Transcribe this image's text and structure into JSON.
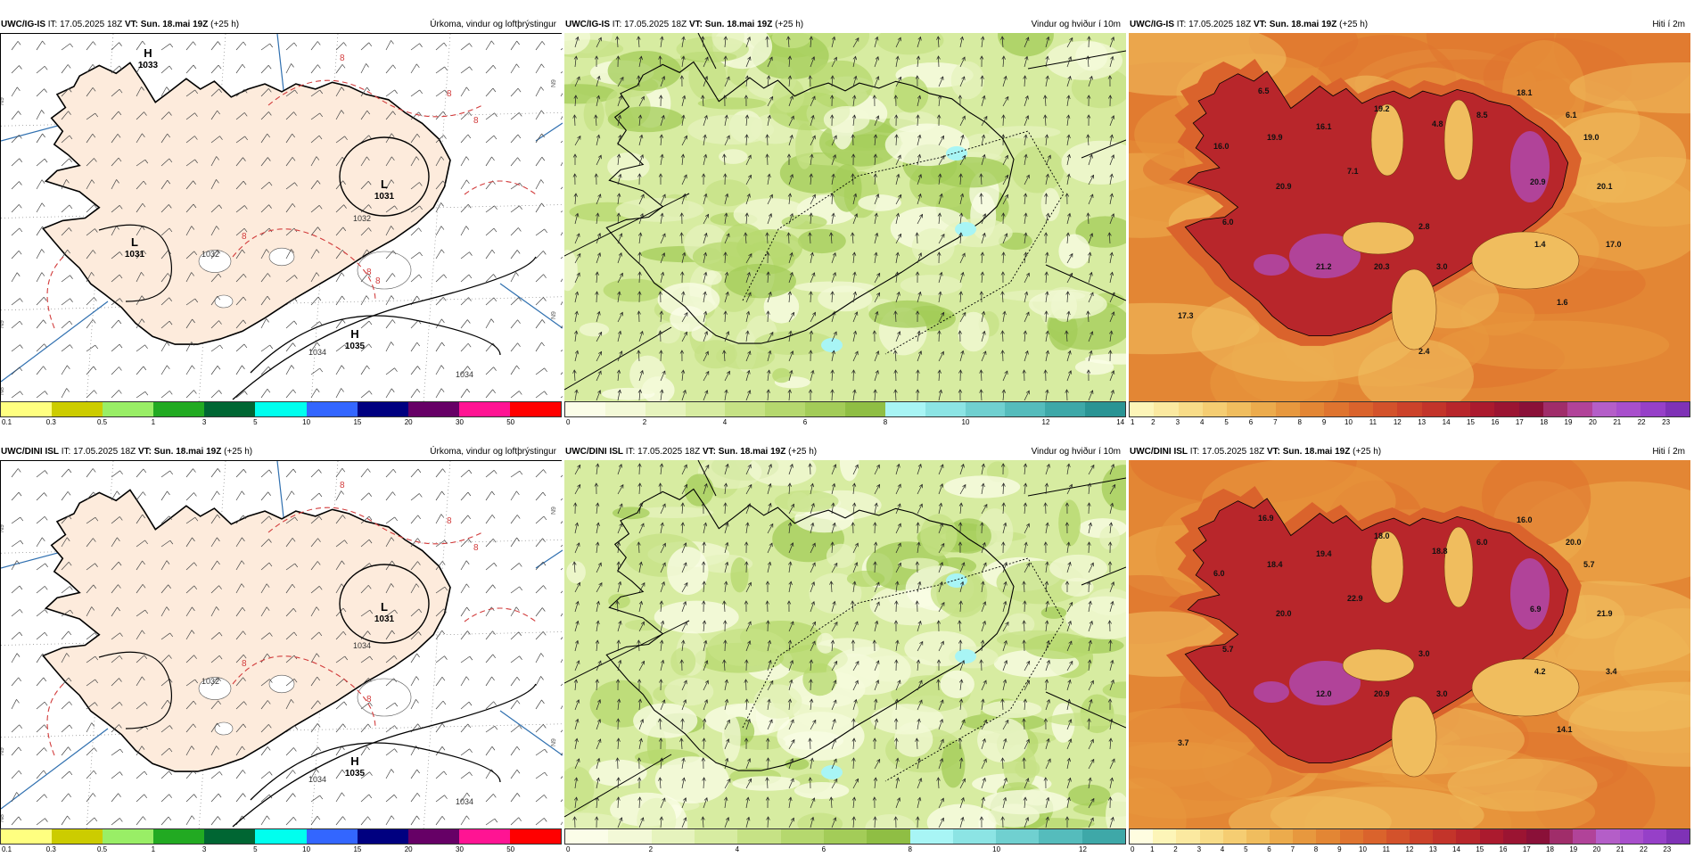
{
  "panels": [
    {
      "id": "p1",
      "model": "UWC/IG-IS",
      "it_label": "IT:",
      "it_value": "17.05.2025 18Z",
      "vt_label": "VT:",
      "vt_value": "Sun. 18.mai 19Z",
      "lead": "(+25 h)",
      "field": "Úrkoma, vindur og loftþrýstingur",
      "map_type": "precip",
      "pressure_labels": [
        {
          "type": "H",
          "value": "1033"
        },
        {
          "type": "L",
          "value": "1031"
        },
        {
          "type": "L",
          "value": "1031"
        },
        {
          "type": "H",
          "value": "1035"
        }
      ],
      "isobar_labels": [
        "1032",
        "1032",
        "1034",
        "1034"
      ],
      "red_labels": [
        "8",
        "8",
        "8",
        "8",
        "8",
        "8"
      ],
      "edge_labels": [
        "N9",
        "N9",
        "N9",
        "N9",
        "N8"
      ],
      "colorbar": {
        "colors": [
          "#ffff80",
          "#cccc00",
          "#99ee66",
          "#22aa22",
          "#006633",
          "#00ffee",
          "#3366ff",
          "#000080",
          "#660066",
          "#ff1493",
          "#ff0000"
        ],
        "ticks": [
          "0.1",
          "0.3",
          "0.5",
          "1",
          "3",
          "5",
          "10",
          "15",
          "20",
          "30",
          "50"
        ]
      }
    },
    {
      "id": "p2",
      "model": "UWC/IG-IS",
      "it_label": "IT:",
      "it_value": "17.05.2025 18Z",
      "vt_label": "VT:",
      "vt_value": "Sun. 18.mai 19Z",
      "lead": "(+25 h)",
      "field": "Vindur og hviður í 10m",
      "map_type": "wind",
      "colorbar": {
        "colors": [
          "#fbfde8",
          "#f3f9d7",
          "#e6f3bd",
          "#d7eca1",
          "#c6e285",
          "#b5d86e",
          "#a3cc58",
          "#8fbe44",
          "#a8f5f5",
          "#8ce4e4",
          "#70d0d0",
          "#55bcbc",
          "#3ea8a8",
          "#2a9494"
        ],
        "ticks": [
          "0",
          "2",
          "4",
          "6",
          "8",
          "10",
          "12",
          "14"
        ]
      }
    },
    {
      "id": "p3",
      "model": "UWC/IG-IS",
      "it_label": "IT:",
      "it_value": "17.05.2025 18Z",
      "vt_label": "VT:",
      "vt_value": "Sun. 18.mai 19Z",
      "lead": "(+25 h)",
      "field": "Hiti í 2m",
      "map_type": "temp",
      "temp_labels": [
        "6.5",
        "18.1",
        "16.0",
        "19.9",
        "16.1",
        "19.2",
        "4.8",
        "8.5",
        "6.1",
        "19.0",
        "20.9",
        "7.1",
        "20.9",
        "20.1",
        "6.0",
        "2.8",
        "1.4",
        "17.0",
        "21.2",
        "20.3",
        "3.0",
        "1.6",
        "17.3",
        "2.4"
      ],
      "colorbar": {
        "colors": [
          "#fdf5b8",
          "#fbe9a0",
          "#f8dc88",
          "#f5cd72",
          "#f0bd5e",
          "#ecab4c",
          "#e7983e",
          "#e38634",
          "#df742f",
          "#da632c",
          "#d3522b",
          "#cc422a",
          "#c3342a",
          "#b8262b",
          "#ab1a2e",
          "#9b1432",
          "#8a1038",
          "#a02d6a",
          "#b14399",
          "#b45ec8",
          "#a84fcc",
          "#9640c8",
          "#7f32b6"
        ],
        "ticks": [
          "1",
          "2",
          "3",
          "4",
          "5",
          "6",
          "7",
          "8",
          "9",
          "10",
          "11",
          "12",
          "13",
          "14",
          "15",
          "16",
          "17",
          "18",
          "19",
          "20",
          "21",
          "22",
          "23"
        ]
      }
    },
    {
      "id": "p4",
      "model": "UWC/DINI ISL",
      "it_label": "IT:",
      "it_value": "17.05.2025 18Z",
      "vt_label": "VT:",
      "vt_value": "Sun. 18.mai 19Z",
      "lead": "(+25 h)",
      "field": "Úrkoma, vindur og loftþrýstingur",
      "map_type": "precip",
      "pressure_labels": [
        {
          "type": "L",
          "value": "1031"
        },
        {
          "type": "H",
          "value": "1035"
        }
      ],
      "isobar_labels": [
        "1032",
        "1034",
        "1034",
        "1034"
      ],
      "red_labels": [
        "8",
        "8",
        "8",
        "8",
        "8"
      ],
      "edge_labels": [
        "N9",
        "N9",
        "N9",
        "N9",
        "N8"
      ],
      "colorbar": {
        "colors": [
          "#ffff80",
          "#cccc00",
          "#99ee66",
          "#22aa22",
          "#006633",
          "#00ffee",
          "#3366ff",
          "#000080",
          "#660066",
          "#ff1493",
          "#ff0000"
        ],
        "ticks": [
          "0.1",
          "0.3",
          "0.5",
          "1",
          "3",
          "5",
          "10",
          "15",
          "20",
          "30",
          "50"
        ]
      }
    },
    {
      "id": "p5",
      "model": "UWC/DINI ISL",
      "it_label": "IT:",
      "it_value": "17.05.2025 18Z",
      "vt_label": "VT:",
      "vt_value": "Sun. 18.mai 19Z",
      "lead": "(+25 h)",
      "field": "Vindur og hviður í 10m",
      "map_type": "wind",
      "colorbar": {
        "colors": [
          "#fbfde8",
          "#f3f9d7",
          "#e6f3bd",
          "#d7eca1",
          "#c6e285",
          "#b5d86e",
          "#a3cc58",
          "#8fbe44",
          "#a8f5f5",
          "#8ce4e4",
          "#70d0d0",
          "#55bcbc",
          "#3ea8a8"
        ],
        "ticks": [
          "0",
          "2",
          "4",
          "6",
          "8",
          "10",
          "12"
        ]
      }
    },
    {
      "id": "p6",
      "model": "UWC/DINI ISL",
      "it_label": "IT:",
      "it_value": "17.05.2025 18Z",
      "vt_label": "VT:",
      "vt_value": "Sun. 18.mai 19Z",
      "lead": "(+25 h)",
      "field": "Hiti í 2m",
      "map_type": "temp",
      "temp_labels": [
        "16.9",
        "16.0",
        "6.0",
        "18.4",
        "19.4",
        "18.0",
        "18.8",
        "6.0",
        "20.0",
        "5.7",
        "20.0",
        "22.9",
        "6.9",
        "21.9",
        "5.7",
        "3.0",
        "4.2",
        "3.4",
        "12.0",
        "20.9",
        "3.0",
        "14.1",
        "3.7"
      ],
      "colorbar": {
        "colors": [
          "#fffde0",
          "#fdf5b8",
          "#fbe9a0",
          "#f8dc88",
          "#f5cd72",
          "#f0bd5e",
          "#ecab4c",
          "#e7983e",
          "#e38634",
          "#df742f",
          "#da632c",
          "#d3522b",
          "#cc422a",
          "#c3342a",
          "#b8262b",
          "#ab1a2e",
          "#9b1432",
          "#8a1038",
          "#a02d6a",
          "#b14399",
          "#b45ec8",
          "#a84fcc",
          "#9640c8",
          "#7f32b6"
        ],
        "ticks": [
          "0",
          "1",
          "2",
          "3",
          "4",
          "5",
          "6",
          "7",
          "8",
          "9",
          "10",
          "11",
          "12",
          "13",
          "14",
          "15",
          "16",
          "17",
          "18",
          "19",
          "20",
          "21",
          "22",
          "23"
        ]
      }
    }
  ]
}
